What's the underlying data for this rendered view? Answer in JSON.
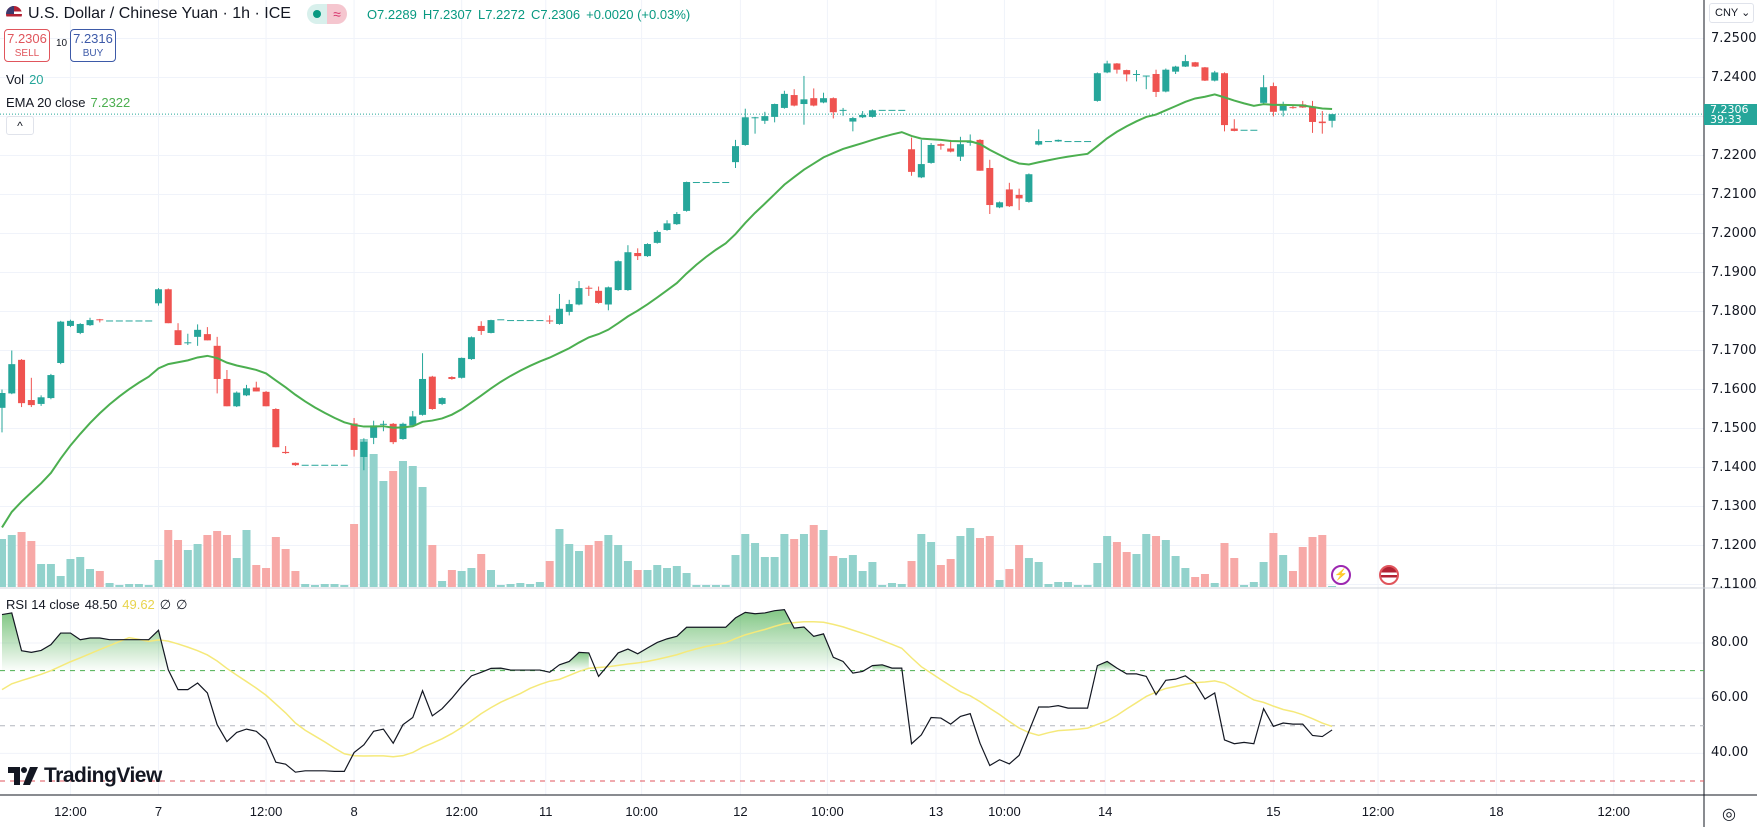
{
  "header": {
    "symbol_title": "U.S. Dollar / Chinese Yuan · 1h · ICE",
    "ohlc": {
      "open": "O7.2289",
      "high": "H7.2307",
      "low": "L7.2272",
      "close": "C7.2306",
      "change": "+0.0020 (+0.03%)"
    },
    "market_status_icon": "live-dot",
    "delay_icon": "wave-icon",
    "wave_glyph": "≈"
  },
  "trade": {
    "sell_price": "7.2306",
    "sell_label": "SELL",
    "spread": "10",
    "buy_price": "7.2316",
    "buy_label": "BUY"
  },
  "indicators": {
    "vol_label": "Vol",
    "vol_value": "20",
    "ema_label": "EMA 20 close",
    "ema_value": "7.2322",
    "rsi_label": "RSI 14 close",
    "rsi_value": "48.50",
    "rsi_ma_value": "49.62",
    "rsi_extra1": "∅",
    "rsi_extra2": "∅",
    "collapse_glyph": "^"
  },
  "price_axis": {
    "currency": "CNY ⌄",
    "labels": [
      "7.2500",
      "7.2400",
      "7.2200",
      "7.2100",
      "7.2000",
      "7.1900",
      "7.1800",
      "7.1700",
      "7.1600",
      "7.1500",
      "7.1400",
      "7.1300",
      "7.1200",
      "7.1100"
    ],
    "current_price": "7.2306",
    "countdown": "39:33"
  },
  "rsi_axis": {
    "labels": [
      "80.00",
      "60.00",
      "40.00"
    ]
  },
  "time_axis": {
    "labels": [
      {
        "text": "12:00",
        "bar": 7
      },
      {
        "text": "7",
        "bar": 16
      },
      {
        "text": "12:00",
        "bar": 27
      },
      {
        "text": "8",
        "bar": 36
      },
      {
        "text": "12:00",
        "bar": 47
      },
      {
        "text": "11",
        "bar": 55.6
      },
      {
        "text": "10:00",
        "bar": 65.4
      },
      {
        "text": "12",
        "bar": 75.5
      },
      {
        "text": "10:00",
        "bar": 84.4
      },
      {
        "text": "13",
        "bar": 95.5
      },
      {
        "text": "10:00",
        "bar": 102.5
      },
      {
        "text": "14",
        "bar": 112.8
      },
      {
        "text": "15",
        "bar": 130
      },
      {
        "text": "12:00",
        "bar": 140.7
      },
      {
        "text": "18",
        "bar": 152.8
      },
      {
        "text": "12:00",
        "bar": 164.8
      }
    ]
  },
  "branding": {
    "logo_text": "TradingView"
  },
  "colors": {
    "up": "#26a69a",
    "down": "#ef5350",
    "vol_up": "#92d2cc",
    "vol_down": "#f7a9a7",
    "ema": "#4caf50",
    "rsi": "#131722",
    "rsi_ma": "#f5e97a",
    "accent": "#26a69a"
  },
  "chart_data": {
    "type": "candlestick",
    "title": "U.S. Dollar / Chinese Yuan · 1h · ICE",
    "ylim": [
      7.105,
      7.255
    ],
    "ema_period": 20,
    "ema_seed": 7.121,
    "rsi_levels": [
      70,
      50,
      30
    ],
    "rsi_ma_period": 14,
    "rsi_ma_prior": 61,
    "columns": [
      "open",
      "high",
      "low",
      "close",
      "volume"
    ],
    "bars": [
      [
        7.1553,
        7.16,
        7.149,
        7.1591,
        48
      ],
      [
        7.159,
        7.17,
        7.1588,
        7.1665,
        52
      ],
      [
        7.1676,
        7.1678,
        7.1555,
        7.1565,
        55
      ],
      [
        7.1573,
        7.163,
        7.1555,
        7.156,
        46
      ],
      [
        7.1563,
        7.1585,
        7.1558,
        7.158,
        23
      ],
      [
        7.1578,
        7.164,
        7.1575,
        7.1637,
        23
      ],
      [
        7.1668,
        7.1776,
        7.1665,
        7.1774,
        11
      ],
      [
        7.1763,
        7.1779,
        7.176,
        7.1776,
        28
      ],
      [
        7.1745,
        7.177,
        7.1742,
        7.1768,
        30
      ],
      [
        7.1765,
        7.1784,
        7.1763,
        7.1778,
        18
      ],
      [
        7.178,
        7.1781,
        7.1772,
        7.1778,
        16
      ],
      [
        7.1777,
        7.1777,
        7.1777,
        7.1777,
        4
      ],
      [
        7.1777,
        7.1777,
        7.1777,
        7.1777,
        2
      ],
      [
        7.1777,
        7.1777,
        7.1777,
        7.1777,
        3
      ],
      [
        7.1777,
        7.1777,
        7.1777,
        7.1777,
        3
      ],
      [
        7.1777,
        7.1777,
        7.1777,
        7.1777,
        2
      ],
      [
        7.1821,
        7.186,
        7.1815,
        7.1857,
        27
      ],
      [
        7.1857,
        7.1859,
        7.177,
        7.177,
        57
      ],
      [
        7.1752,
        7.177,
        7.1714,
        7.1714,
        47
      ],
      [
        7.172,
        7.1743,
        7.1714,
        7.1721,
        37
      ],
      [
        7.1735,
        7.1767,
        7.1712,
        7.1753,
        43
      ],
      [
        7.1742,
        7.176,
        7.1726,
        7.1726,
        52
      ],
      [
        7.1712,
        7.1735,
        7.159,
        7.1627,
        56
      ],
      [
        7.1627,
        7.165,
        7.1557,
        7.1557,
        52
      ],
      [
        7.1557,
        7.1595,
        7.1555,
        7.1592,
        29
      ],
      [
        7.1585,
        7.1612,
        7.1583,
        7.1603,
        57
      ],
      [
        7.1605,
        7.162,
        7.1595,
        7.1595,
        22
      ],
      [
        7.1594,
        7.1596,
        7.1557,
        7.1557,
        19
      ],
      [
        7.155,
        7.1552,
        7.1452,
        7.1452,
        50
      ],
      [
        7.144,
        7.1455,
        7.1435,
        7.1437,
        38
      ],
      [
        7.1412,
        7.1413,
        7.1404,
        7.1406,
        16
      ],
      [
        7.1407,
        7.1407,
        7.1407,
        7.1407,
        3
      ],
      [
        7.1407,
        7.1407,
        7.1407,
        7.1407,
        2
      ],
      [
        7.1407,
        7.1407,
        7.1407,
        7.1407,
        3
      ],
      [
        7.1407,
        7.1407,
        7.1407,
        7.1407,
        3
      ],
      [
        7.1407,
        7.1407,
        7.1407,
        7.1407,
        2
      ],
      [
        7.1513,
        7.1527,
        7.1428,
        7.1445,
        63
      ],
      [
        7.1427,
        7.1475,
        7.1393,
        7.1466,
        148
      ],
      [
        7.1476,
        7.152,
        7.146,
        7.1508,
        133
      ],
      [
        7.151,
        7.152,
        7.1493,
        7.1512,
        106
      ],
      [
        7.1512,
        7.1514,
        7.146,
        7.1465,
        116
      ],
      [
        7.1473,
        7.1515,
        7.1471,
        7.1512,
        126
      ],
      [
        7.1508,
        7.1545,
        7.1505,
        7.1531,
        121
      ],
      [
        7.1535,
        7.1693,
        7.1533,
        7.1627,
        100
      ],
      [
        7.1633,
        7.1635,
        7.1548,
        7.155,
        42
      ],
      [
        7.1563,
        7.158,
        7.156,
        7.1578,
        6
      ],
      [
        7.1632,
        7.1634,
        7.1625,
        7.1627,
        17
      ],
      [
        7.163,
        7.1682,
        7.1628,
        7.1681,
        16
      ],
      [
        7.1678,
        7.1736,
        7.1676,
        7.1734,
        19
      ],
      [
        7.1763,
        7.1775,
        7.174,
        7.175,
        33
      ],
      [
        7.1745,
        7.1779,
        7.1744,
        7.1778,
        17
      ],
      [
        7.178,
        7.178,
        7.178,
        7.178,
        2
      ],
      [
        7.1778,
        7.1778,
        7.1778,
        7.1778,
        3
      ],
      [
        7.1778,
        7.1778,
        7.1778,
        7.1778,
        4
      ],
      [
        7.1778,
        7.1778,
        7.1778,
        7.1778,
        3
      ],
      [
        7.1778,
        7.1778,
        7.1778,
        7.1778,
        5
      ],
      [
        7.1777,
        7.179,
        7.1768,
        7.1776,
        26
      ],
      [
        7.1768,
        7.1845,
        7.1766,
        7.1807,
        58
      ],
      [
        7.1799,
        7.183,
        7.179,
        7.1819,
        43
      ],
      [
        7.1818,
        7.1878,
        7.1816,
        7.186,
        36
      ],
      [
        7.1861,
        7.1866,
        7.184,
        7.1859,
        42
      ],
      [
        7.1853,
        7.1864,
        7.182,
        7.1822,
        46
      ],
      [
        7.1818,
        7.1864,
        7.1803,
        7.1862,
        52
      ],
      [
        7.1855,
        7.1931,
        7.1853,
        7.1929,
        42
      ],
      [
        7.1855,
        7.197,
        7.1853,
        7.1952,
        26
      ],
      [
        7.195,
        7.1962,
        7.1932,
        7.1942,
        17
      ],
      [
        7.1942,
        7.1975,
        7.194,
        7.1973,
        17
      ],
      [
        7.1976,
        7.2008,
        7.1974,
        7.2004,
        22
      ],
      [
        7.2009,
        7.2034,
        7.2007,
        7.2026,
        19
      ],
      [
        7.2024,
        7.2055,
        7.2022,
        7.205,
        21
      ],
      [
        7.2058,
        7.2133,
        7.2056,
        7.2132,
        14
      ],
      [
        7.2132,
        7.2132,
        7.2132,
        7.2132,
        2
      ],
      [
        7.2132,
        7.2132,
        7.2132,
        7.2132,
        2
      ],
      [
        7.2132,
        7.2132,
        7.2132,
        7.2132,
        2
      ],
      [
        7.2132,
        7.2132,
        7.2132,
        7.2132,
        2
      ],
      [
        7.2183,
        7.224,
        7.2168,
        7.2224,
        32
      ],
      [
        7.2227,
        7.232,
        7.2225,
        7.2298,
        53
      ],
      [
        7.2296,
        7.2299,
        7.2256,
        7.2298,
        44
      ],
      [
        7.2289,
        7.2312,
        7.2281,
        7.2301,
        30
      ],
      [
        7.2299,
        7.2333,
        7.2285,
        7.2332,
        30
      ],
      [
        7.2322,
        7.2366,
        7.232,
        7.2358,
        53
      ],
      [
        7.2355,
        7.237,
        7.2326,
        7.2328,
        48
      ],
      [
        7.2332,
        7.2404,
        7.2279,
        7.2344,
        53
      ],
      [
        7.2347,
        7.2372,
        7.2326,
        7.2328,
        62
      ],
      [
        7.2336,
        7.2361,
        7.2334,
        7.2347,
        57
      ],
      [
        7.2347,
        7.2349,
        7.2295,
        7.2311,
        31
      ],
      [
        7.2316,
        7.2322,
        7.2302,
        7.2317,
        29
      ],
      [
        7.2287,
        7.2299,
        7.2262,
        7.2296,
        32
      ],
      [
        7.2298,
        7.2314,
        7.2296,
        7.2304,
        16
      ],
      [
        7.2299,
        7.2318,
        7.2297,
        7.2316,
        25
      ],
      [
        7.2317,
        7.2317,
        7.2317,
        7.2317,
        2
      ],
      [
        7.2317,
        7.2317,
        7.2317,
        7.2317,
        4
      ],
      [
        7.2317,
        7.2317,
        7.2317,
        7.2317,
        3
      ],
      [
        7.2216,
        7.2246,
        7.2148,
        7.2158,
        26
      ],
      [
        7.2144,
        7.224,
        7.2142,
        7.2178,
        53
      ],
      [
        7.2181,
        7.2232,
        7.2179,
        7.2227,
        45
      ],
      [
        7.2229,
        7.2231,
        7.2215,
        7.2225,
        22
      ],
      [
        7.2218,
        7.224,
        7.2208,
        7.221,
        28
      ],
      [
        7.2197,
        7.2248,
        7.2186,
        7.2229,
        51
      ],
      [
        7.2234,
        7.2254,
        7.2225,
        7.2235,
        59
      ],
      [
        7.224,
        7.2242,
        7.2161,
        7.2161,
        49
      ],
      [
        7.2168,
        7.2189,
        7.205,
        7.2073,
        51
      ],
      [
        7.2067,
        7.2082,
        7.2065,
        7.208,
        7
      ],
      [
        7.2113,
        7.213,
        7.2068,
        7.207,
        18
      ],
      [
        7.2099,
        7.2115,
        7.206,
        7.209,
        42
      ],
      [
        7.2081,
        7.2154,
        7.2079,
        7.2152,
        29
      ],
      [
        7.2228,
        7.2267,
        7.2226,
        7.2237,
        25
      ],
      [
        7.2237,
        7.2237,
        7.2237,
        7.2237,
        3
      ],
      [
        7.2236,
        7.2241,
        7.2235,
        7.224,
        5
      ],
      [
        7.2237,
        7.2237,
        7.2237,
        7.2237,
        5
      ],
      [
        7.2237,
        7.2237,
        7.2237,
        7.2237,
        2
      ],
      [
        7.2237,
        7.2237,
        7.2237,
        7.2237,
        2
      ],
      [
        7.234,
        7.2413,
        7.2338,
        7.2411,
        24
      ],
      [
        7.2413,
        7.2443,
        7.2411,
        7.2436,
        51
      ],
      [
        7.2436,
        7.2437,
        7.241,
        7.242,
        45
      ],
      [
        7.2419,
        7.242,
        7.239,
        7.2408,
        35
      ],
      [
        7.2408,
        7.2419,
        7.239,
        7.2409,
        33
      ],
      [
        7.2404,
        7.2405,
        7.237,
        7.2405,
        53
      ],
      [
        7.2409,
        7.242,
        7.235,
        7.2363,
        51
      ],
      [
        7.2364,
        7.2423,
        7.2362,
        7.242,
        47
      ],
      [
        7.2415,
        7.243,
        7.2409,
        7.2428,
        31
      ],
      [
        7.2428,
        7.2458,
        7.2427,
        7.2442,
        19
      ],
      [
        7.2439,
        7.244,
        7.2427,
        7.2428,
        10
      ],
      [
        7.2426,
        7.2427,
        7.2391,
        7.2392,
        13
      ],
      [
        7.2392,
        7.2417,
        7.239,
        7.2413,
        4
      ],
      [
        7.2411,
        7.2413,
        7.2262,
        7.2278,
        44
      ],
      [
        7.2269,
        7.2293,
        7.2262,
        7.2263,
        29
      ],
      [
        7.2266,
        7.2266,
        7.2266,
        7.2266,
        2
      ],
      [
        7.2266,
        7.2266,
        7.2266,
        7.2266,
        5
      ],
      [
        7.2335,
        7.2406,
        7.2333,
        7.2375,
        25
      ],
      [
        7.2378,
        7.2387,
        7.23,
        7.2312,
        54
      ],
      [
        7.2315,
        7.2338,
        7.23,
        7.2328,
        32
      ],
      [
        7.2324,
        7.2327,
        7.232,
        7.2323,
        16
      ],
      [
        7.2331,
        7.234,
        7.2322,
        7.2323,
        40
      ],
      [
        7.2326,
        7.234,
        7.2258,
        7.2286,
        50
      ],
      [
        7.2287,
        7.2314,
        7.2256,
        7.2283,
        52
      ],
      [
        7.2289,
        7.2307,
        7.2272,
        7.2306,
        1
      ]
    ],
    "rsi": [
      90.3,
      90.9,
      77.2,
      76.6,
      77.3,
      79.4,
      83.6,
      83.6,
      81.2,
      81.8,
      81.8,
      81.2,
      81.2,
      81.2,
      81.2,
      81.2,
      84.6,
      70.3,
      63.1,
      63.1,
      65.5,
      61.9,
      50.4,
      44.3,
      47.6,
      48.8,
      48.0,
      44.9,
      36.8,
      36.1,
      33.2,
      33.7,
      33.7,
      33.7,
      33.5,
      33.5,
      40.3,
      43.1,
      48.0,
      48.8,
      43.7,
      50.4,
      53.0,
      62.7,
      53.6,
      56.2,
      60.0,
      64.3,
      68.1,
      69.4,
      70.8,
      70.9,
      70.2,
      70.2,
      70.2,
      70.2,
      69.4,
      72.1,
      73.3,
      76.6,
      76.4,
      67.9,
      72.1,
      76.4,
      77.8,
      76.1,
      78.2,
      80.2,
      81.5,
      82.4,
      85.7,
      85.7,
      85.7,
      85.7,
      85.7,
      89.1,
      91.1,
      90.6,
      90.9,
      91.7,
      92.1,
      85.4,
      85.8,
      82.4,
      83.3,
      74.8,
      73.3,
      69.1,
      69.7,
      71.8,
      72.1,
      70.9,
      70.9,
      43.5,
      46.7,
      53.0,
      52.8,
      50.6,
      53.4,
      54.4,
      43.7,
      35.6,
      37.7,
      36.2,
      39.3,
      48.0,
      56.8,
      56.8,
      57.3,
      56.4,
      56.4,
      56.4,
      71.8,
      73.3,
      70.9,
      68.8,
      68.8,
      67.9,
      61.3,
      66.5,
      66.9,
      68.1,
      65.5,
      59.7,
      61.9,
      44.9,
      43.5,
      44.0,
      43.5,
      56.2,
      49.8,
      51.0,
      50.6,
      50.6,
      46.5,
      46.1,
      48.5
    ]
  }
}
